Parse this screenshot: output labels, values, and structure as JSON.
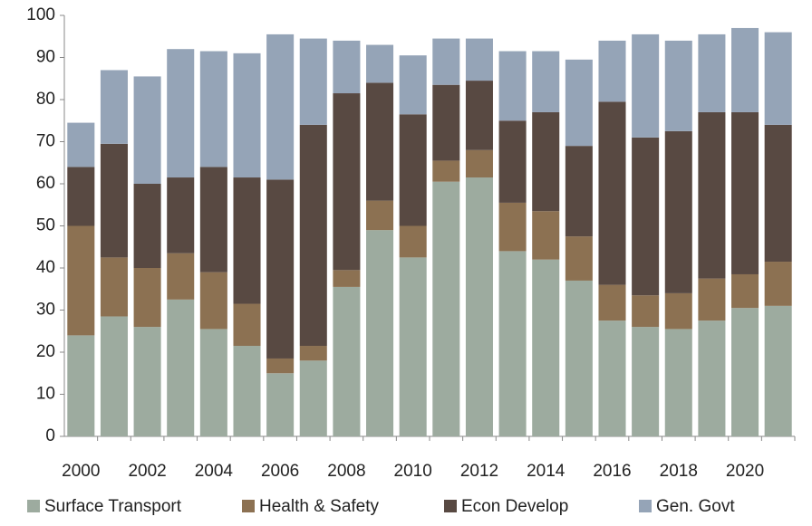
{
  "chart_data": {
    "type": "stacked_bar",
    "categories": [
      "2000",
      null,
      "2002",
      null,
      "2004",
      null,
      "2006",
      null,
      "2008",
      null,
      "2010",
      null,
      "2012",
      null,
      "2014",
      null,
      "2016",
      null,
      "2018",
      null,
      "2020",
      null
    ],
    "series": [
      {
        "name": "Surface Transport",
        "color": "#9dab9f",
        "values": [
          24,
          28.5,
          26,
          32.5,
          25.5,
          21.5,
          15,
          18,
          35.5,
          49,
          42.5,
          60.5,
          61.5,
          44,
          42,
          37,
          27.5,
          26,
          25.5,
          27.5,
          30.5,
          31
        ]
      },
      {
        "name": "Health & Safety",
        "color": "#8c7152",
        "values": [
          26,
          14,
          14,
          11,
          13.5,
          10,
          3.5,
          3.5,
          4,
          7,
          7.5,
          5,
          6.5,
          11.5,
          11.5,
          10.5,
          8.5,
          7.5,
          8.5,
          10,
          8,
          10.5
        ]
      },
      {
        "name": "Econ Develop",
        "color": "#584942",
        "values": [
          14,
          27,
          20,
          18,
          25,
          30,
          42.5,
          52.5,
          42,
          28,
          26.5,
          18,
          16.5,
          19.5,
          23.5,
          21.5,
          43.5,
          37.5,
          38.5,
          39.5,
          38.5,
          32.5
        ]
      },
      {
        "name": "Gen. Govt",
        "color": "#95a4b7",
        "values": [
          10.5,
          17.5,
          25.5,
          30.5,
          27.5,
          29.5,
          34.5,
          20.5,
          12.5,
          9,
          14,
          11,
          10,
          16.5,
          14.5,
          20.5,
          14.5,
          24.5,
          21.5,
          18.5,
          20,
          22
        ]
      }
    ],
    "ylim": [
      0,
      100
    ],
    "yticks": [
      0,
      10,
      20,
      30,
      40,
      50,
      60,
      70,
      80,
      90,
      100
    ],
    "grid": false,
    "legend": "bottom"
  }
}
